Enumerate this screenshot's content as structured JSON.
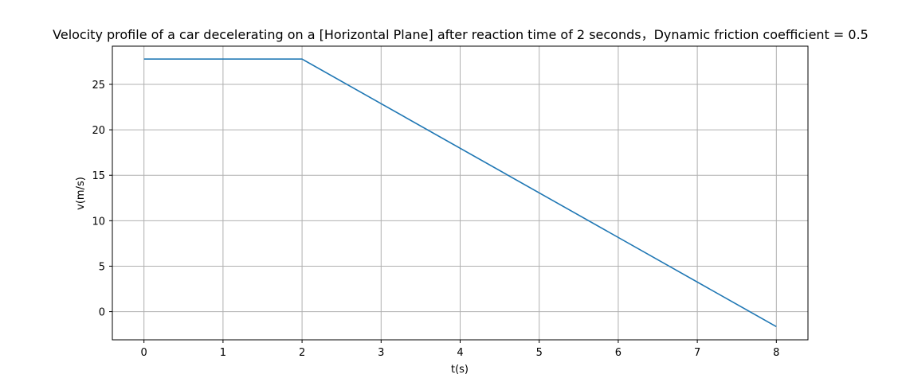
{
  "chart_data": {
    "type": "line",
    "title": "Velocity profile of a car decelerating on a [Horizontal Plane] after reaction time of 2 seconds，Dynamic friction coefficient = 0.5",
    "xlabel": "t(s)",
    "ylabel": "v(m/s)",
    "xlim": [
      -0.4,
      8.4
    ],
    "ylim": [
      -3.1,
      29.2
    ],
    "xticks": [
      0,
      1,
      2,
      3,
      4,
      5,
      6,
      7,
      8
    ],
    "yticks": [
      0,
      5,
      10,
      15,
      20,
      25
    ],
    "grid": true,
    "series": [
      {
        "color": "#1f77b4",
        "x": [
          0,
          2,
          8
        ],
        "y": [
          27.78,
          27.78,
          -1.65
        ]
      }
    ]
  }
}
